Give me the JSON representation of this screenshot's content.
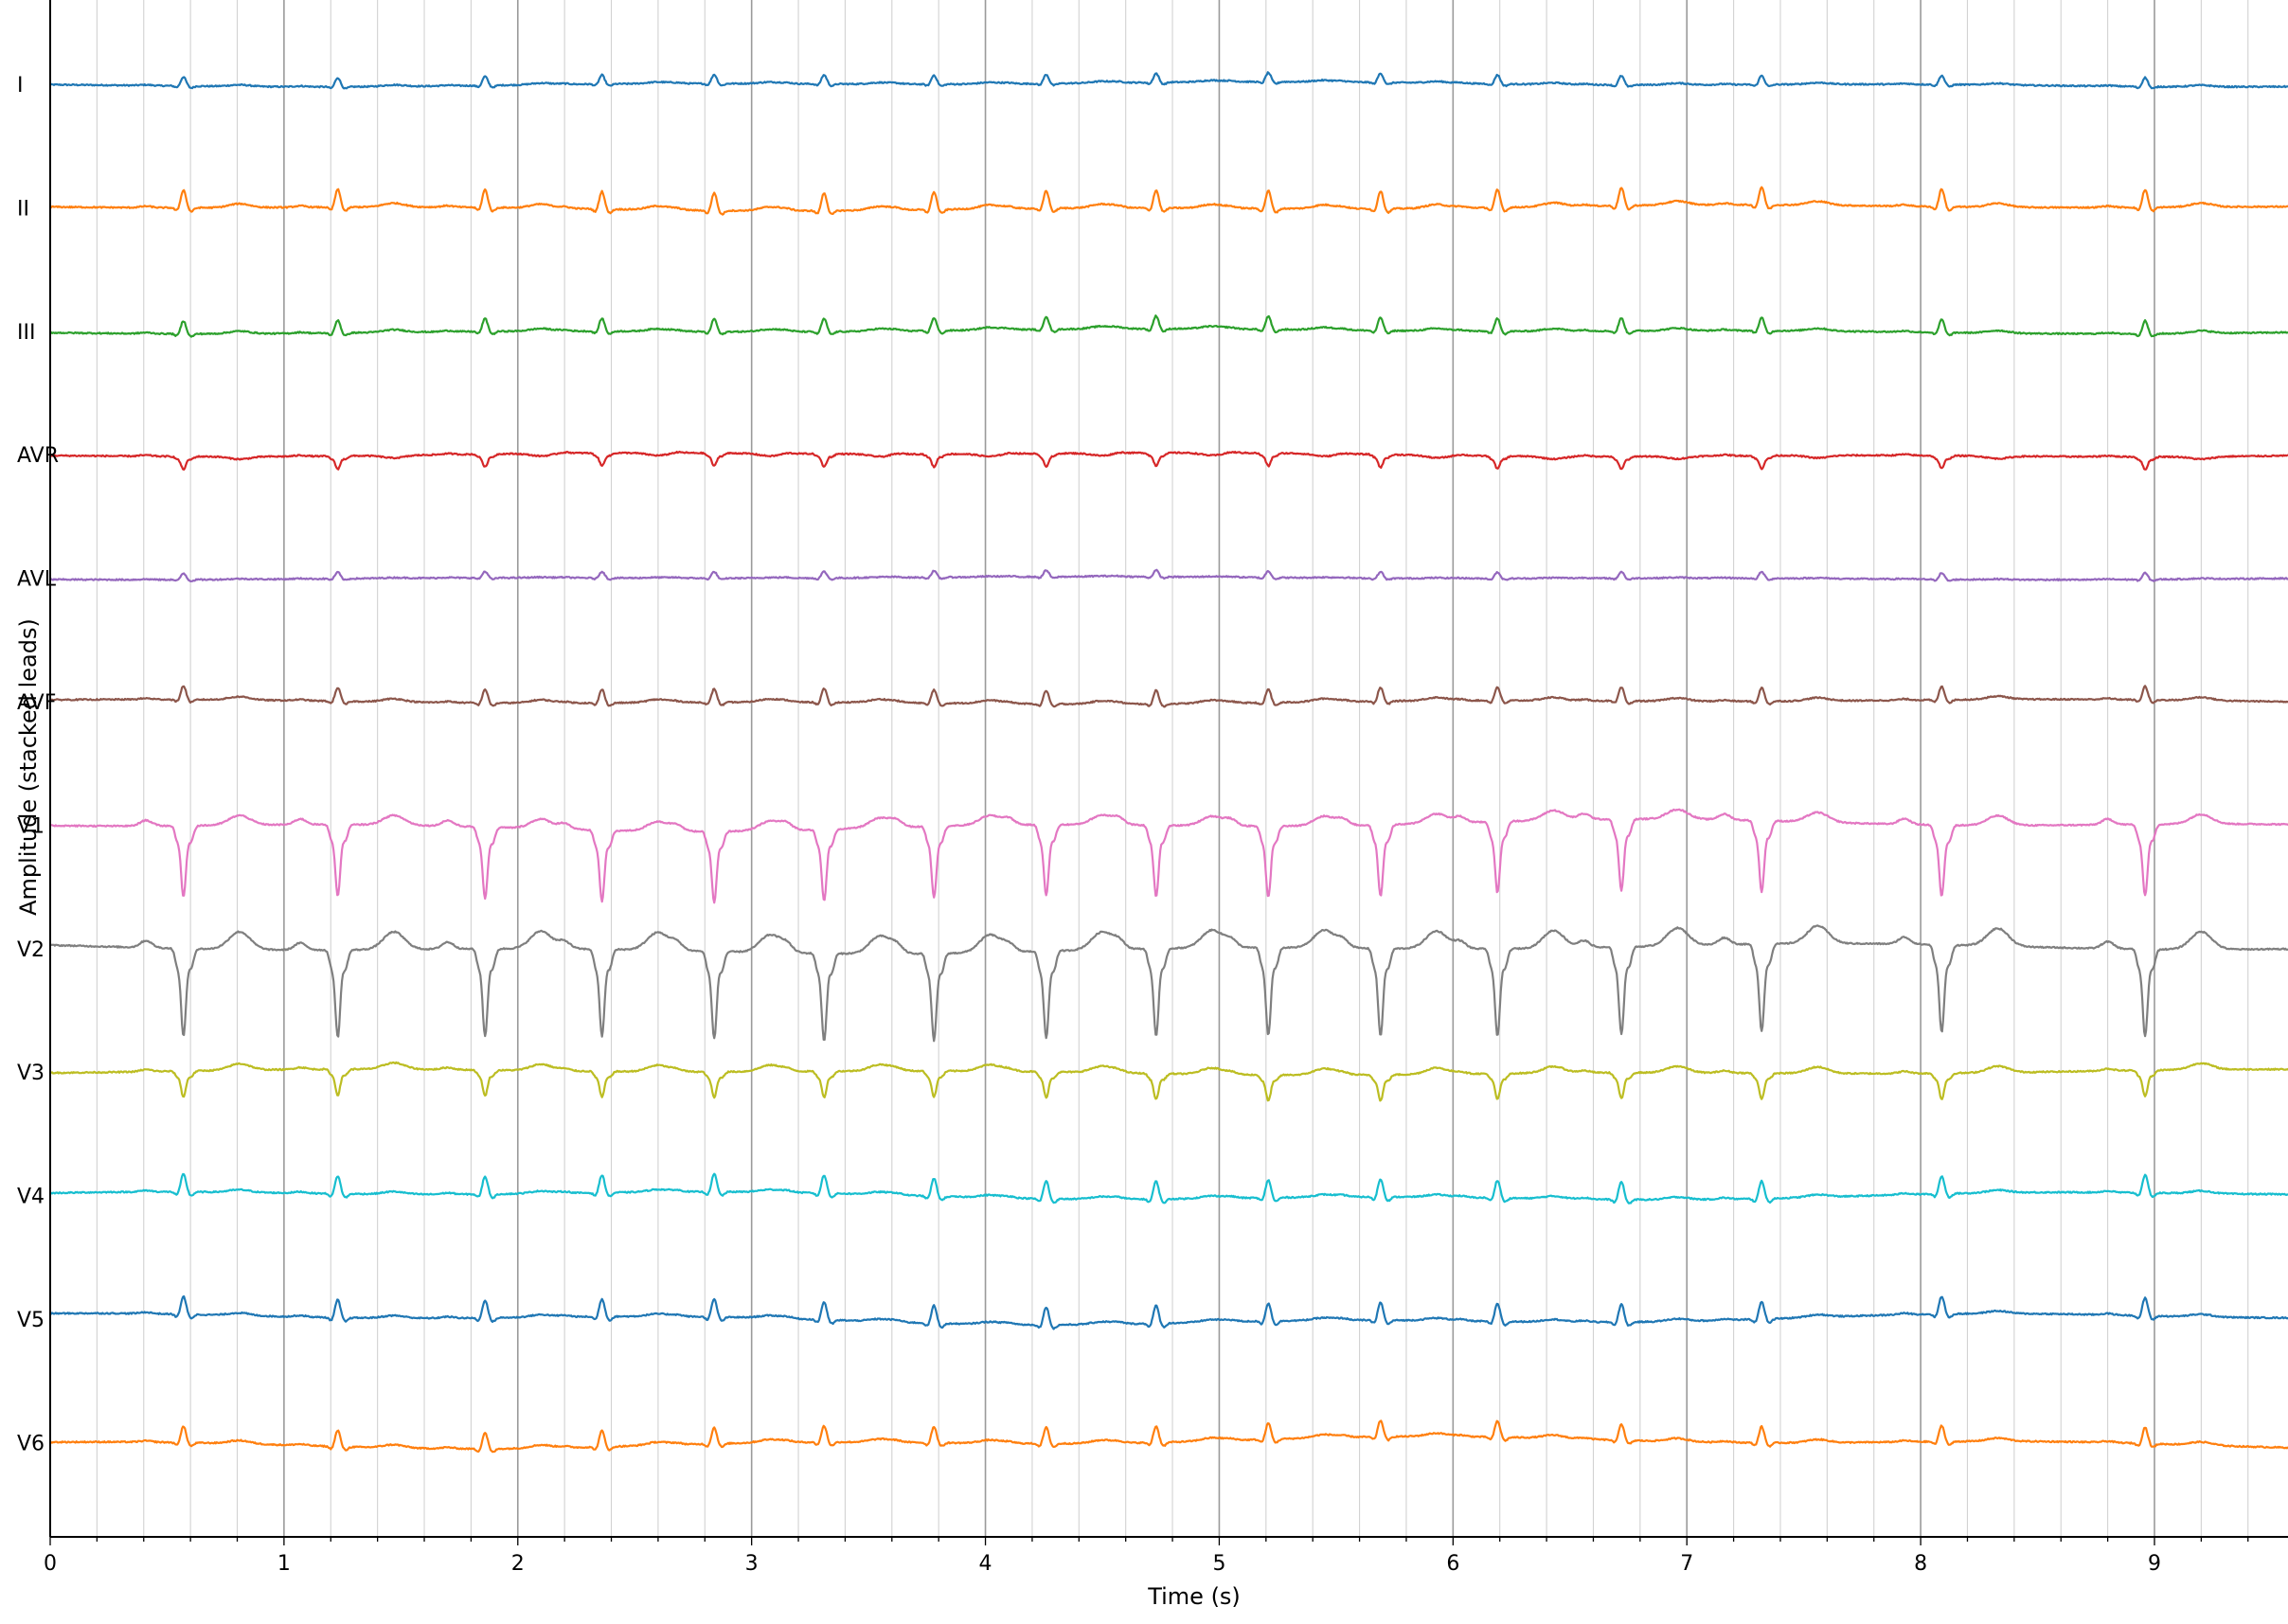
{
  "chart_data": {
    "type": "line",
    "title": "",
    "xlabel": "Time (s)",
    "ylabel": "Amplitude (stacked leads)",
    "xlim": [
      0,
      9.8
    ],
    "x_ticks": [
      0,
      1,
      2,
      3,
      4,
      5,
      6,
      7,
      8,
      9
    ],
    "x_tick_labels": [
      "0",
      "1",
      "2",
      "3",
      "4",
      "5",
      "6",
      "7",
      "8",
      "9"
    ],
    "grid": {
      "major_every_s": 1.0,
      "minor_every_s": 0.2,
      "axis": "x"
    },
    "legend": "none",
    "r_peaks_s": [
      0.57,
      1.23,
      1.86,
      2.36,
      2.84,
      3.31,
      3.78,
      4.26,
      4.73,
      5.21,
      5.69,
      6.19,
      6.72,
      7.32,
      8.09,
      8.96
    ],
    "series": [
      {
        "name": "I",
        "color": "#1f77b4",
        "qrs_amplitude": 0.28,
        "t_amplitude": 0.05,
        "drift": 0.05
      },
      {
        "name": "II",
        "color": "#ff7f0e",
        "qrs_amplitude": 0.55,
        "t_amplitude": 0.12,
        "drift": 0.06
      },
      {
        "name": "III",
        "color": "#2ca02c",
        "qrs_amplitude": 0.4,
        "t_amplitude": 0.08,
        "drift": 0.05
      },
      {
        "name": "AVR",
        "color": "#d62728",
        "qrs_amplitude": -0.4,
        "t_amplitude": -0.08,
        "drift": 0.05
      },
      {
        "name": "AVL",
        "color": "#9467bd",
        "qrs_amplitude": 0.2,
        "t_amplitude": 0.02,
        "drift": 0.03
      },
      {
        "name": "AVF",
        "color": "#8c564b",
        "qrs_amplitude": 0.42,
        "t_amplitude": 0.1,
        "drift": 0.05
      },
      {
        "name": "V1",
        "color": "#e377c2",
        "qrs_amplitude": -2.2,
        "t_amplitude": 0.3,
        "drift": 0.12
      },
      {
        "name": "V2",
        "color": "#7f7f7f",
        "qrs_amplitude": -2.7,
        "t_amplitude": 0.55,
        "drift": 0.1
      },
      {
        "name": "V3",
        "color": "#bcbd22",
        "qrs_amplitude": -0.8,
        "t_amplitude": 0.2,
        "drift": 0.06
      },
      {
        "name": "V4",
        "color": "#17becf",
        "qrs_amplitude": 0.55,
        "t_amplitude": 0.08,
        "drift": 0.1
      },
      {
        "name": "V5",
        "color": "#1f77b4",
        "qrs_amplitude": 0.55,
        "t_amplitude": 0.08,
        "drift": 0.12
      },
      {
        "name": "V6",
        "color": "#ff7f0e",
        "qrs_amplitude": 0.5,
        "t_amplitude": 0.1,
        "drift": 0.12
      }
    ]
  }
}
